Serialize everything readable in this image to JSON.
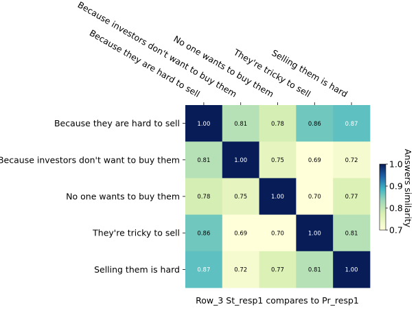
{
  "chart_data": {
    "type": "heatmap",
    "rows": [
      "Because they are hard to sell",
      "Because investors don't want to buy them",
      "No one wants to buy them",
      "They're tricky to sell",
      "Selling them is hard"
    ],
    "columns": [
      "Because they are hard to sell",
      "Because investors don't want to buy them",
      "No one wants to buy them",
      "They're tricky to sell",
      "Selling them is hard"
    ],
    "values": [
      [
        1.0,
        0.81,
        0.78,
        0.86,
        0.87
      ],
      [
        0.81,
        1.0,
        0.75,
        0.69,
        0.72
      ],
      [
        0.78,
        0.75,
        1.0,
        0.7,
        0.77
      ],
      [
        0.86,
        0.69,
        0.7,
        1.0,
        0.81
      ],
      [
        0.87,
        0.72,
        0.77,
        0.81,
        1.0
      ]
    ],
    "value_format": "2dp",
    "xlabel": "Row_3 St_resp1 compares to Pr_resp1",
    "colorbar": {
      "label": "Answers similarity",
      "range": [
        0.7,
        1.0
      ],
      "ticks": [
        "0.7",
        "0.8",
        "0.9",
        "1.0"
      ],
      "colormap": "YlGnBu"
    },
    "column_labels_position": "top",
    "grid": false
  }
}
